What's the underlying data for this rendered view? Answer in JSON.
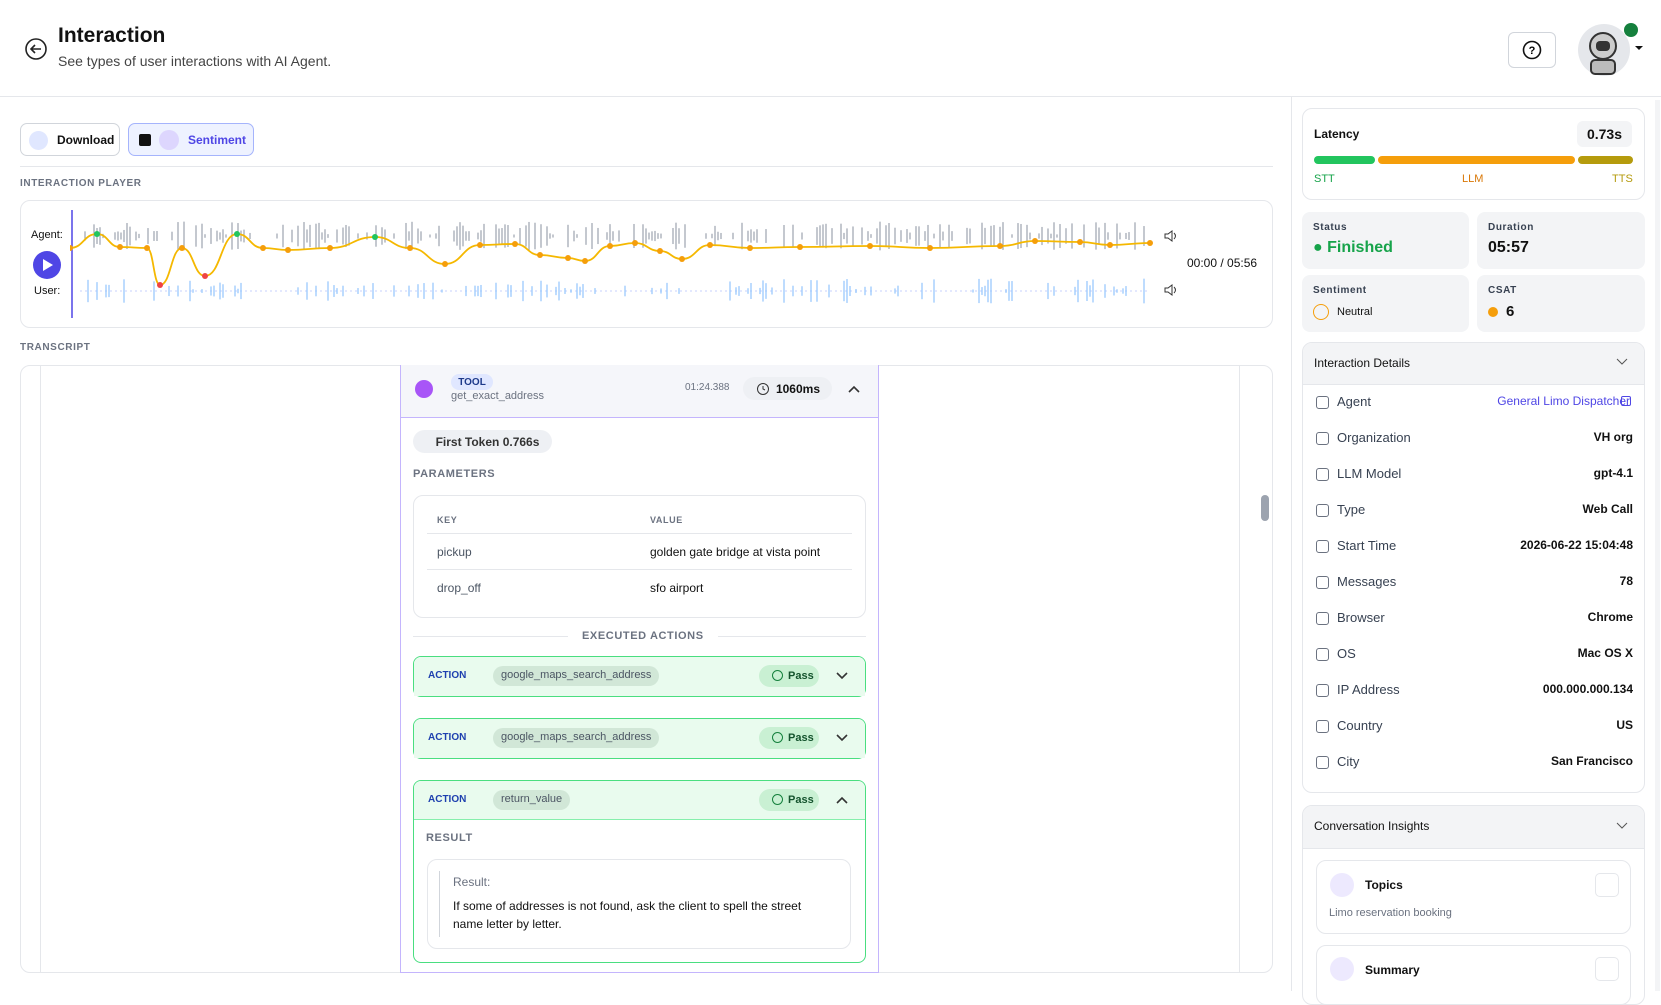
{
  "header": {
    "title": "Interaction",
    "subtitle": "See types of user interactions with AI Agent."
  },
  "toolbar": {
    "download": "Download",
    "sentiment": "Sentiment"
  },
  "player": {
    "section_label": "INTERACTION PLAYER",
    "agent_label": "Agent:",
    "user_label": "User:",
    "time": "00:00 / 05:56"
  },
  "transcript": {
    "section_label": "TRANSCRIPT",
    "tool": {
      "badge": "TOOL",
      "name": "get_exact_address",
      "timestamp": "01:24.388",
      "duration": "1060ms",
      "first_token": "First Token 0.766s",
      "parameters_label": "PARAMETERS",
      "table": {
        "headers": [
          "KEY",
          "VALUE"
        ],
        "rows": [
          [
            "pickup",
            "golden gate bridge at vista point"
          ],
          [
            "drop_off",
            "sfo airport"
          ]
        ]
      },
      "executed_label": "EXECUTED ACTIONS",
      "actions": [
        {
          "badge": "ACTION",
          "name": "google_maps_search_address",
          "status": "Pass"
        },
        {
          "badge": "ACTION",
          "name": "google_maps_search_address",
          "status": "Pass"
        },
        {
          "badge": "ACTION",
          "name": "return_value",
          "status": "Pass"
        }
      ],
      "result_label": "RESULT",
      "result_title": "Result:",
      "result_text": "If some of addresses is not found, ask the client to spell the street name letter by letter."
    }
  },
  "sidebar": {
    "latency": {
      "label": "Latency",
      "value": "0.73s",
      "segments": [
        "STT",
        "LLM",
        "TTS"
      ]
    },
    "status": {
      "label": "Status",
      "value": "Finished"
    },
    "duration": {
      "label": "Duration",
      "value": "05:57"
    },
    "sentiment": {
      "label": "Sentiment",
      "value": "Neutral"
    },
    "csat": {
      "label": "CSAT",
      "value": 6
    },
    "details": {
      "title": "Interaction Details",
      "rows": [
        [
          "Agent",
          "General Limo Dispatcher"
        ],
        [
          "Organization",
          "VH org"
        ],
        [
          "LLM Model",
          "gpt-4.1"
        ],
        [
          "Type",
          "Web Call"
        ],
        [
          "Start Time",
          "2026-06-22 15:04:48"
        ],
        [
          "Messages",
          78
        ],
        [
          "Browser",
          "Chrome"
        ],
        [
          "OS",
          "Mac OS X"
        ],
        [
          "IP Address",
          "000.000.000.134"
        ],
        [
          "Country",
          "US"
        ],
        [
          "City",
          "San Francisco"
        ]
      ]
    },
    "insights": {
      "title": "Conversation Insights",
      "topics_label": "Topics",
      "topics_text": "Limo reservation booking",
      "summary_label": "Summary"
    }
  }
}
